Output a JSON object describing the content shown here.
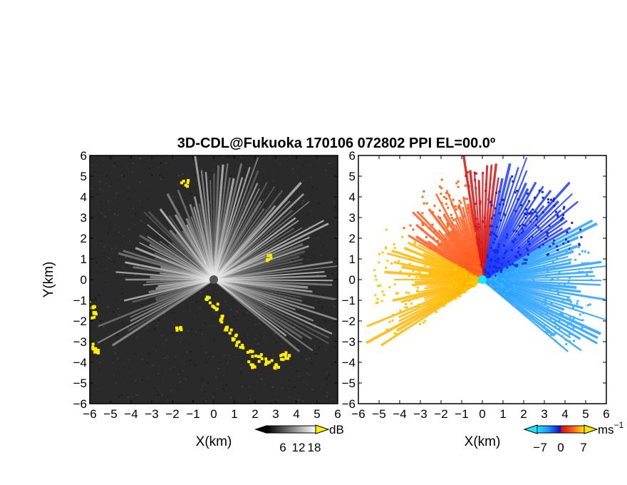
{
  "chart_data": {
    "type": "heatmap",
    "title": "3D-CDL@Fukuoka 170106 072802 PPI EL=00.0º",
    "panels": [
      {
        "name": "intensity",
        "xlabel": "X(km)",
        "ylabel": "Y(km)",
        "xlim": [
          -6,
          6
        ],
        "ylim": [
          -6,
          6
        ],
        "xticks": [
          "-6",
          "-5",
          "-4",
          "-3",
          "-2",
          "-1",
          "0",
          "1",
          "2",
          "3",
          "4",
          "5",
          "6"
        ],
        "yticks": [
          "6",
          "5",
          "4",
          "3",
          "2",
          "1",
          "0",
          "-1",
          "-2",
          "-3",
          "-4",
          "-5",
          "-6"
        ],
        "colorbar": {
          "unit": "dB",
          "ticks": [
            "6",
            "12",
            "18"
          ],
          "range": [
            0,
            24
          ]
        },
        "background_color": "#2a2a2a",
        "highlight_color": "#ffee00"
      },
      {
        "name": "doppler",
        "xlabel": "X(km)",
        "xlim": [
          -6,
          6
        ],
        "ylim": [
          -6,
          6
        ],
        "xticks": [
          "-6",
          "-5",
          "-4",
          "-3",
          "-2",
          "-1",
          "0",
          "1",
          "2",
          "3",
          "4",
          "5",
          "6"
        ],
        "yticks": [
          "6",
          "5",
          "4",
          "3",
          "2",
          "1",
          "0",
          "-1",
          "-2",
          "-3",
          "-4",
          "-5",
          "-6"
        ],
        "colorbar": {
          "unit": "ms",
          "unit_exp": "−1",
          "ticks": [
            "-7",
            "0",
            "7"
          ],
          "range": [
            -10,
            10
          ]
        }
      }
    ]
  },
  "tick_labels": {
    "x": [
      "−6",
      "−5",
      "−4",
      "−3",
      "−2",
      "−1",
      "0",
      "1",
      "2",
      "3",
      "4",
      "5",
      "6"
    ],
    "y": [
      "6",
      "5",
      "4",
      "3",
      "2",
      "1",
      "0",
      "−1",
      "−2",
      "−3",
      "−4",
      "−5",
      "−6"
    ],
    "cb1": [
      "6",
      "12",
      "18"
    ],
    "cb2": [
      "−7",
      "0",
      "7"
    ]
  },
  "labels": {
    "title": "3D-CDL@Fukuoka 170106 072802 PPI EL=00.0º",
    "xlabel": "X(km)",
    "ylabel": "Y(km)",
    "cb1_unit": "dB",
    "cb2_unit": "ms",
    "cb2_exp": "−1"
  }
}
